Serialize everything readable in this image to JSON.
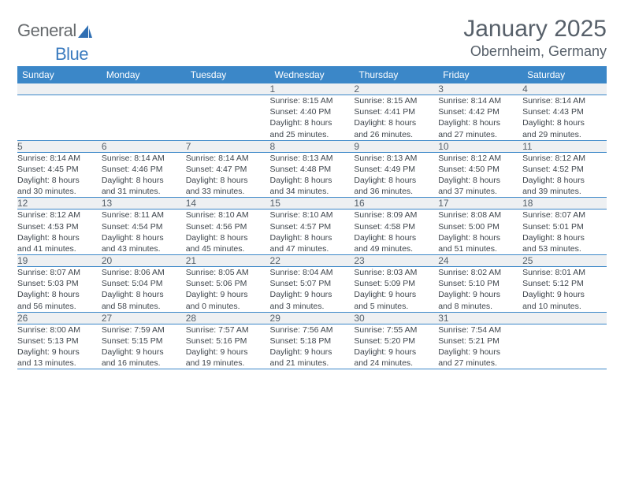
{
  "logo": {
    "part1": "General",
    "part2": "Blue",
    "text_color1": "#666a6d",
    "text_color2": "#3b7bbf",
    "icon_color": "#2f6fb3"
  },
  "title": {
    "month": "January 2025",
    "location": "Obernheim, Germany",
    "color": "#57606a"
  },
  "colors": {
    "header_bg": "#3b87c8",
    "header_fg": "#ffffff",
    "daynum_bg": "#eef0f2",
    "daynum_fg": "#56616b",
    "cell_fg": "#3f464d",
    "divider": "#3b87c8"
  },
  "days": [
    "Sunday",
    "Monday",
    "Tuesday",
    "Wednesday",
    "Thursday",
    "Friday",
    "Saturday"
  ],
  "weeks": [
    [
      null,
      null,
      null,
      {
        "n": "1",
        "sr": "8:15 AM",
        "ss": "4:40 PM",
        "dh": "8",
        "dm": "25"
      },
      {
        "n": "2",
        "sr": "8:15 AM",
        "ss": "4:41 PM",
        "dh": "8",
        "dm": "26"
      },
      {
        "n": "3",
        "sr": "8:14 AM",
        "ss": "4:42 PM",
        "dh": "8",
        "dm": "27"
      },
      {
        "n": "4",
        "sr": "8:14 AM",
        "ss": "4:43 PM",
        "dh": "8",
        "dm": "29"
      }
    ],
    [
      {
        "n": "5",
        "sr": "8:14 AM",
        "ss": "4:45 PM",
        "dh": "8",
        "dm": "30"
      },
      {
        "n": "6",
        "sr": "8:14 AM",
        "ss": "4:46 PM",
        "dh": "8",
        "dm": "31"
      },
      {
        "n": "7",
        "sr": "8:14 AM",
        "ss": "4:47 PM",
        "dh": "8",
        "dm": "33"
      },
      {
        "n": "8",
        "sr": "8:13 AM",
        "ss": "4:48 PM",
        "dh": "8",
        "dm": "34"
      },
      {
        "n": "9",
        "sr": "8:13 AM",
        "ss": "4:49 PM",
        "dh": "8",
        "dm": "36"
      },
      {
        "n": "10",
        "sr": "8:12 AM",
        "ss": "4:50 PM",
        "dh": "8",
        "dm": "37"
      },
      {
        "n": "11",
        "sr": "8:12 AM",
        "ss": "4:52 PM",
        "dh": "8",
        "dm": "39"
      }
    ],
    [
      {
        "n": "12",
        "sr": "8:12 AM",
        "ss": "4:53 PM",
        "dh": "8",
        "dm": "41"
      },
      {
        "n": "13",
        "sr": "8:11 AM",
        "ss": "4:54 PM",
        "dh": "8",
        "dm": "43"
      },
      {
        "n": "14",
        "sr": "8:10 AM",
        "ss": "4:56 PM",
        "dh": "8",
        "dm": "45"
      },
      {
        "n": "15",
        "sr": "8:10 AM",
        "ss": "4:57 PM",
        "dh": "8",
        "dm": "47"
      },
      {
        "n": "16",
        "sr": "8:09 AM",
        "ss": "4:58 PM",
        "dh": "8",
        "dm": "49"
      },
      {
        "n": "17",
        "sr": "8:08 AM",
        "ss": "5:00 PM",
        "dh": "8",
        "dm": "51"
      },
      {
        "n": "18",
        "sr": "8:07 AM",
        "ss": "5:01 PM",
        "dh": "8",
        "dm": "53"
      }
    ],
    [
      {
        "n": "19",
        "sr": "8:07 AM",
        "ss": "5:03 PM",
        "dh": "8",
        "dm": "56"
      },
      {
        "n": "20",
        "sr": "8:06 AM",
        "ss": "5:04 PM",
        "dh": "8",
        "dm": "58"
      },
      {
        "n": "21",
        "sr": "8:05 AM",
        "ss": "5:06 PM",
        "dh": "9",
        "dm": "0"
      },
      {
        "n": "22",
        "sr": "8:04 AM",
        "ss": "5:07 PM",
        "dh": "9",
        "dm": "3"
      },
      {
        "n": "23",
        "sr": "8:03 AM",
        "ss": "5:09 PM",
        "dh": "9",
        "dm": "5"
      },
      {
        "n": "24",
        "sr": "8:02 AM",
        "ss": "5:10 PM",
        "dh": "9",
        "dm": "8"
      },
      {
        "n": "25",
        "sr": "8:01 AM",
        "ss": "5:12 PM",
        "dh": "9",
        "dm": "10"
      }
    ],
    [
      {
        "n": "26",
        "sr": "8:00 AM",
        "ss": "5:13 PM",
        "dh": "9",
        "dm": "13"
      },
      {
        "n": "27",
        "sr": "7:59 AM",
        "ss": "5:15 PM",
        "dh": "9",
        "dm": "16"
      },
      {
        "n": "28",
        "sr": "7:57 AM",
        "ss": "5:16 PM",
        "dh": "9",
        "dm": "19"
      },
      {
        "n": "29",
        "sr": "7:56 AM",
        "ss": "5:18 PM",
        "dh": "9",
        "dm": "21"
      },
      {
        "n": "30",
        "sr": "7:55 AM",
        "ss": "5:20 PM",
        "dh": "9",
        "dm": "24"
      },
      {
        "n": "31",
        "sr": "7:54 AM",
        "ss": "5:21 PM",
        "dh": "9",
        "dm": "27"
      },
      null
    ]
  ]
}
